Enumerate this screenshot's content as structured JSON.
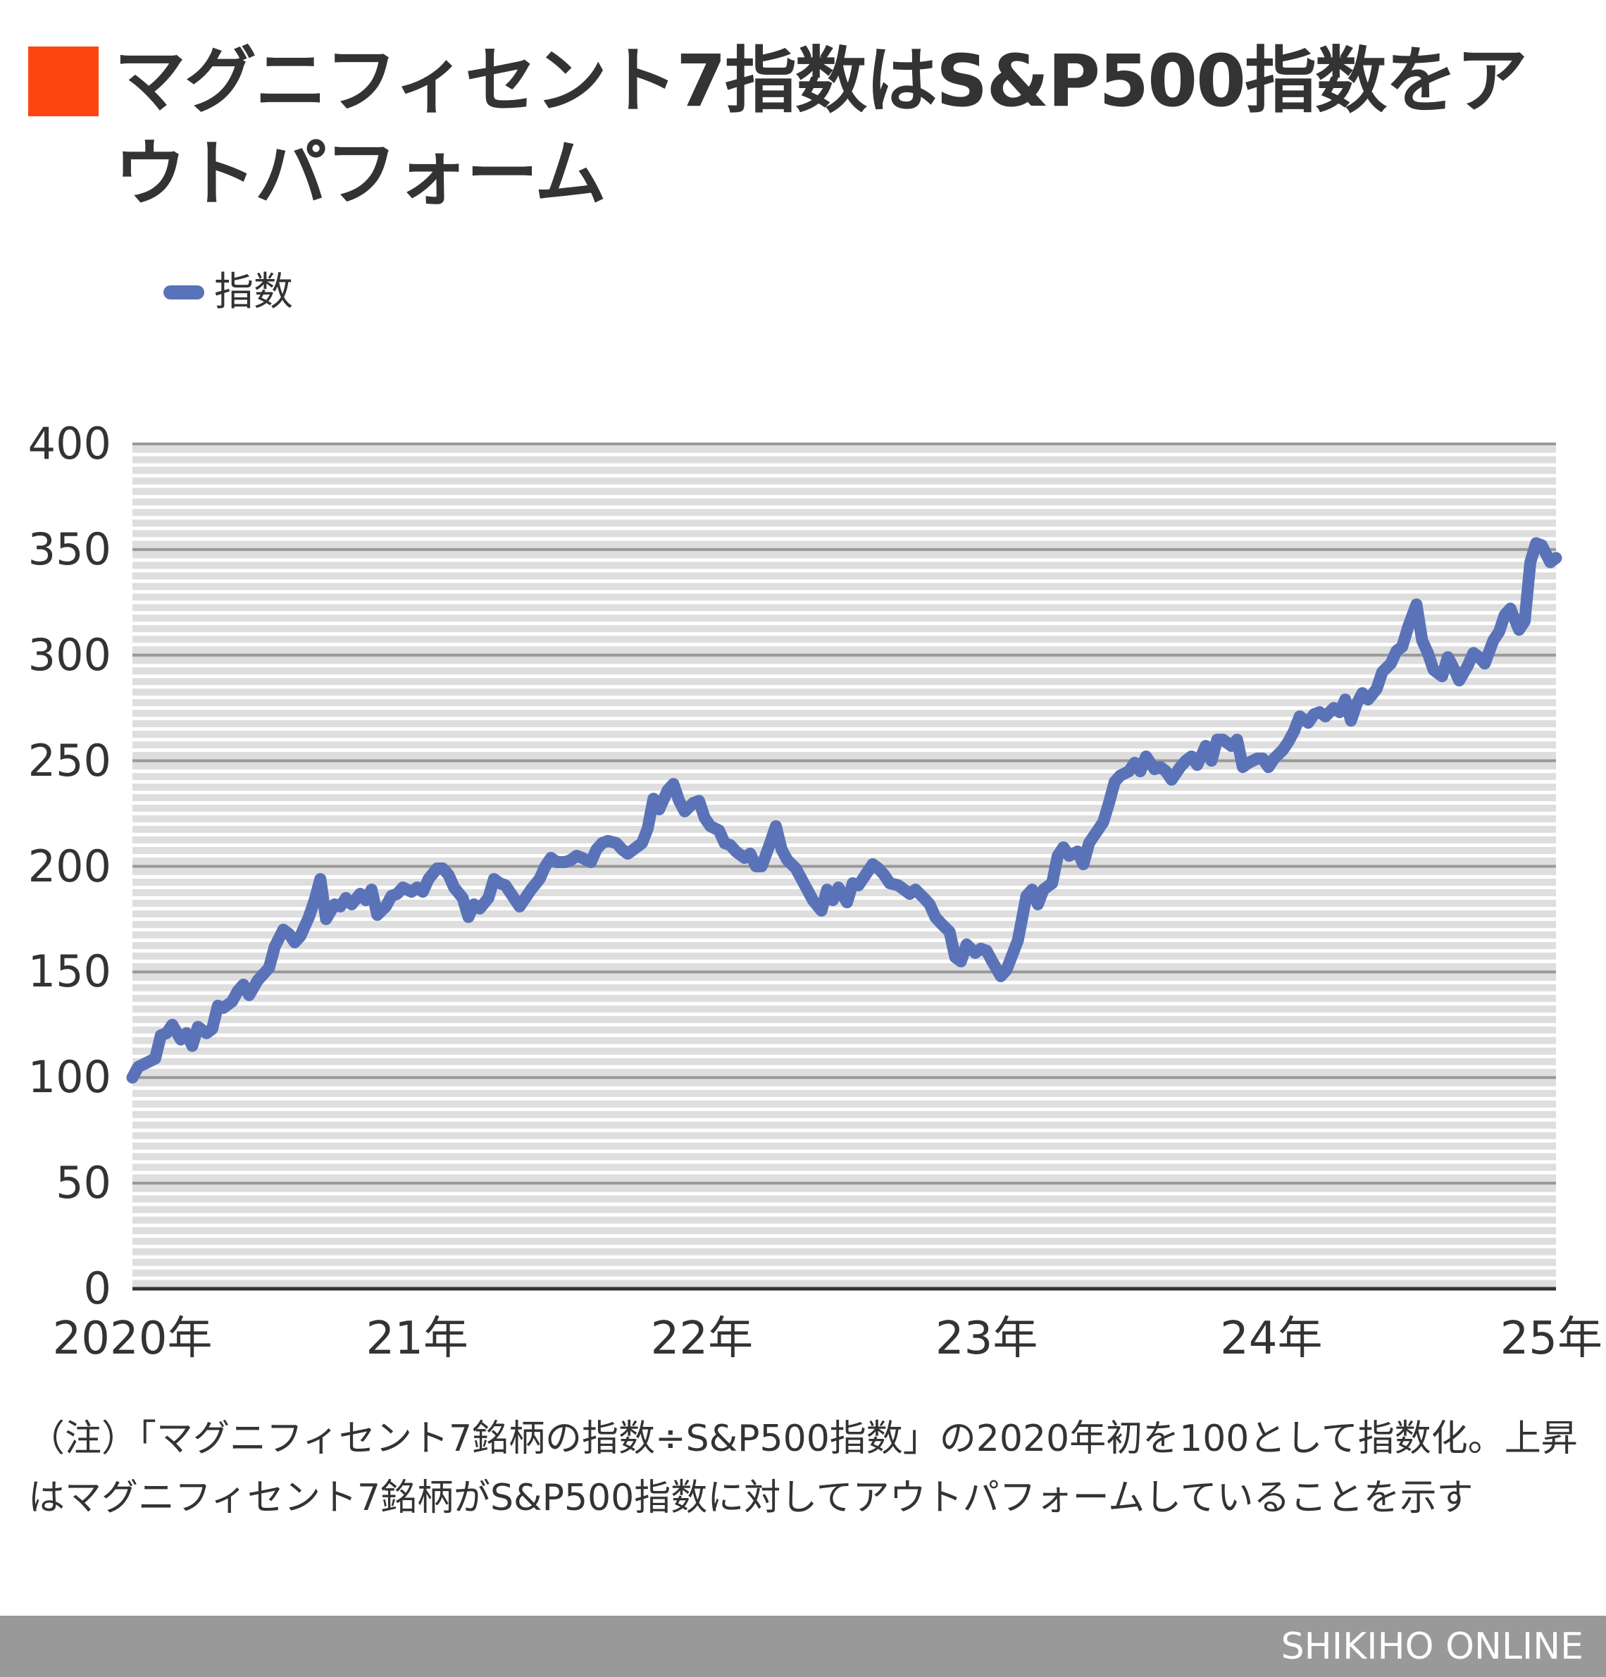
{
  "header": {
    "title": "マグニフィセント7指数はS&P500指数をアウトパフォーム",
    "accent_color": "#FC4511"
  },
  "legend": {
    "label": "指数",
    "color": "#5A73B8"
  },
  "note": "（注）「マグニフィセント7銘柄の指数÷S&P500指数」の2020年初を100として指数化。上昇はマグニフィセント7銘柄がS&P500指数に対してアウトパフォームしていることを示す",
  "footer": {
    "brand": "SHIKIHO ONLINE",
    "background": "#999999"
  },
  "chart_data": {
    "type": "line",
    "title": "マグニフィセント7指数はS&P500指数をアウトパフォーム",
    "xlabel": "",
    "ylabel": "",
    "ylim": [
      0,
      400
    ],
    "xlim": [
      2020.0,
      2025.0
    ],
    "y_ticks": [
      "0",
      "50",
      "100",
      "150",
      "200",
      "250",
      "300",
      "350",
      "400"
    ],
    "x_ticks": [
      {
        "pos": 2020,
        "label": "2020年"
      },
      {
        "pos": 2021,
        "label": "21年"
      },
      {
        "pos": 2022,
        "label": "22年"
      },
      {
        "pos": 2023,
        "label": "23年"
      },
      {
        "pos": 2024,
        "label": "24年"
      },
      {
        "pos": 2025,
        "label": "25年"
      }
    ],
    "grid": {
      "major_step": 50,
      "minor_step": 5
    },
    "legend_position": "top-left",
    "series": [
      {
        "name": "指数",
        "color": "#5A73B8",
        "x": [
          2020.0,
          2020.02,
          2020.05,
          2020.08,
          2020.1,
          2020.12,
          2020.14,
          2020.17,
          2020.19,
          2020.21,
          2020.23,
          2020.26,
          2020.28,
          2020.3,
          2020.32,
          2020.35,
          2020.37,
          2020.39,
          2020.41,
          2020.44,
          2020.46,
          2020.48,
          2020.5,
          2020.53,
          2020.55,
          2020.57,
          2020.59,
          2020.62,
          2020.64,
          2020.66,
          2020.68,
          2020.71,
          2020.73,
          2020.75,
          2020.77,
          2020.8,
          2020.82,
          2020.84,
          2020.86,
          2020.89,
          2020.91,
          2020.93,
          2020.95,
          2020.98,
          2021.0,
          2021.02,
          2021.04,
          2021.07,
          2021.09,
          2021.11,
          2021.13,
          2021.16,
          2021.18,
          2021.2,
          2021.22,
          2021.25,
          2021.27,
          2021.29,
          2021.31,
          2021.34,
          2021.36,
          2021.38,
          2021.4,
          2021.43,
          2021.45,
          2021.47,
          2021.49,
          2021.52,
          2021.54,
          2021.56,
          2021.58,
          2021.61,
          2021.63,
          2021.65,
          2021.67,
          2021.7,
          2021.72,
          2021.74,
          2021.76,
          2021.79,
          2021.81,
          2021.83,
          2021.85,
          2021.88,
          2021.9,
          2021.92,
          2021.94,
          2021.97,
          2021.99,
          2022.01,
          2022.03,
          2022.06,
          2022.08,
          2022.1,
          2022.12,
          2022.15,
          2022.17,
          2022.19,
          2022.21,
          2022.24,
          2022.26,
          2022.28,
          2022.3,
          2022.33,
          2022.35,
          2022.37,
          2022.39,
          2022.42,
          2022.44,
          2022.46,
          2022.48,
          2022.51,
          2022.53,
          2022.55,
          2022.57,
          2022.6,
          2022.62,
          2022.64,
          2022.66,
          2022.69,
          2022.71,
          2022.73,
          2022.75,
          2022.78,
          2022.8,
          2022.82,
          2022.84,
          2022.87,
          2022.89,
          2022.91,
          2022.93,
          2022.96,
          2022.98,
          2023.0,
          2023.02,
          2023.05,
          2023.07,
          2023.09,
          2023.11,
          2023.14,
          2023.16,
          2023.18,
          2023.2,
          2023.23,
          2023.25,
          2023.27,
          2023.29,
          2023.32,
          2023.34,
          2023.36,
          2023.38,
          2023.41,
          2023.43,
          2023.45,
          2023.47,
          2023.5,
          2023.52,
          2023.54,
          2023.56,
          2023.59,
          2023.61,
          2023.63,
          2023.65,
          2023.68,
          2023.7,
          2023.72,
          2023.74,
          2023.77,
          2023.79,
          2023.81,
          2023.83,
          2023.86,
          2023.88,
          2023.9,
          2023.92,
          2023.95,
          2023.97,
          2023.99,
          2024.01,
          2024.04,
          2024.06,
          2024.08,
          2024.1,
          2024.13,
          2024.15,
          2024.17,
          2024.19,
          2024.22,
          2024.24,
          2024.26,
          2024.28,
          2024.3,
          2024.32,
          2024.34,
          2024.37,
          2024.39,
          2024.42,
          2024.44,
          2024.46,
          2024.48,
          2024.51,
          2024.53,
          2024.55,
          2024.57,
          2024.6,
          2024.62,
          2024.64,
          2024.66,
          2024.69,
          2024.71,
          2024.73,
          2024.75,
          2024.78,
          2024.8,
          2024.82,
          2024.84,
          2024.87,
          2024.89,
          2024.91,
          2024.93,
          2024.95,
          2024.98,
          2025.0
        ],
        "values": [
          100,
          105,
          107,
          109,
          120,
          121,
          125,
          118,
          121,
          115,
          124,
          121,
          123,
          134,
          133,
          136,
          141,
          144,
          139,
          146,
          149,
          152,
          162,
          170,
          168,
          164,
          167,
          176,
          184,
          194,
          175,
          182,
          181,
          185,
          182,
          187,
          184,
          189,
          177,
          181,
          186,
          187,
          190,
          188,
          190,
          188,
          194,
          199,
          199,
          196,
          190,
          185,
          176,
          182,
          180,
          185,
          194,
          192,
          191,
          185,
          181,
          185,
          189,
          194,
          200,
          204,
          202,
          202,
          203,
          205,
          204,
          202,
          208,
          211,
          212,
          211,
          208,
          206,
          208,
          211,
          218,
          232,
          227,
          236,
          239,
          231,
          226,
          230,
          231,
          223,
          219,
          217,
          211,
          210,
          207,
          204,
          206,
          200,
          200,
          211,
          219,
          208,
          203,
          199,
          194,
          189,
          184,
          179,
          189,
          184,
          190,
          183,
          192,
          191,
          195,
          201,
          199,
          196,
          192,
          191,
          189,
          187,
          189,
          185,
          182,
          176,
          173,
          169,
          157,
          155,
          163,
          159,
          161,
          160,
          155,
          148,
          151,
          158,
          165,
          186,
          189,
          182,
          189,
          192,
          205,
          209,
          205,
          207,
          201,
          211,
          215,
          221,
          230,
          240,
          243,
          245,
          249,
          245,
          252,
          246,
          247,
          245,
          241,
          247,
          250,
          252,
          248,
          257,
          250,
          260,
          260,
          257,
          260,
          247,
          249,
          251,
          251,
          247,
          251,
          255,
          259,
          264,
          271,
          268,
          272,
          273,
          271,
          275,
          273,
          279,
          269,
          277,
          282,
          279,
          284,
          292,
          296,
          302,
          304,
          313,
          324,
          307,
          301,
          293,
          290,
          299,
          294,
          288,
          295,
          301,
          299,
          296,
          307,
          311,
          319,
          322,
          312,
          316,
          344,
          353,
          352,
          344,
          346
        ]
      }
    ]
  }
}
